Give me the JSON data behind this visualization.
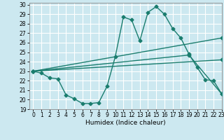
{
  "xlabel": "Humidex (Indice chaleur)",
  "bg_color": "#cce8f0",
  "grid_color": "#ffffff",
  "line_color": "#1a7d6e",
  "xlim": [
    -0.5,
    23
  ],
  "ylim": [
    19,
    30.2
  ],
  "yticks": [
    19,
    20,
    21,
    22,
    23,
    24,
    25,
    26,
    27,
    28,
    29,
    30
  ],
  "xticks": [
    0,
    1,
    2,
    3,
    4,
    5,
    6,
    7,
    8,
    9,
    10,
    11,
    12,
    13,
    14,
    15,
    16,
    17,
    18,
    19,
    20,
    21,
    22,
    23
  ],
  "line1_x": [
    0,
    1,
    2,
    3,
    4,
    5,
    6,
    7,
    8,
    9,
    10,
    11,
    12,
    13,
    14,
    15,
    16,
    17,
    18,
    19,
    20,
    21,
    22,
    23
  ],
  "line1_y": [
    23.0,
    22.8,
    22.3,
    22.2,
    20.5,
    20.1,
    19.6,
    19.6,
    19.7,
    21.4,
    24.5,
    28.7,
    28.4,
    26.2,
    29.2,
    29.8,
    29.0,
    27.5,
    26.5,
    24.8,
    23.4,
    22.1,
    22.0,
    20.6
  ],
  "line2_x": [
    0,
    23
  ],
  "line2_y": [
    23.0,
    26.5
  ],
  "line3_x": [
    0,
    19,
    23
  ],
  "line3_y": [
    23.0,
    24.7,
    20.6
  ],
  "line4_x": [
    0,
    23
  ],
  "line4_y": [
    23.0,
    24.2
  ],
  "marker_size": 2.5,
  "line_width": 1.0
}
